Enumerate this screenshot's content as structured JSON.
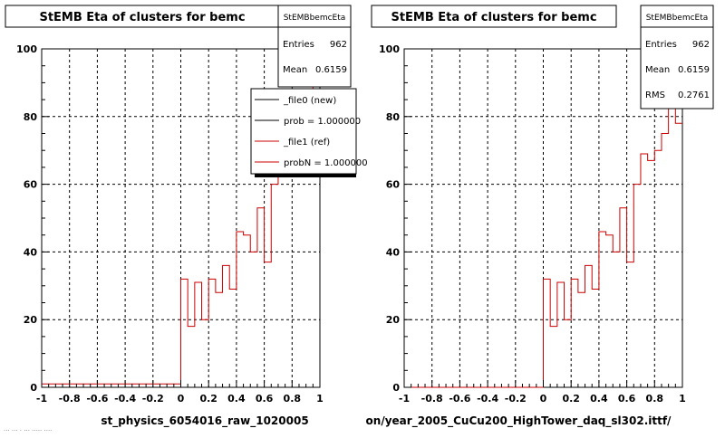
{
  "page": {
    "footer_text": "... ... . ... ..... ...."
  },
  "chart_data": [
    {
      "type": "histogram",
      "title": "StEMB Eta of clusters for bemc",
      "xlabel": "st_physics_6054016_raw_1020005",
      "ylabel": "",
      "xlim": [
        -1,
        1
      ],
      "ylim": [
        0,
        100
      ],
      "grid": true,
      "xticks": [
        "-1",
        "-0.8",
        "-0.6",
        "-0.4",
        "-0.2",
        "0",
        "0.2",
        "0.4",
        "0.6",
        "0.8",
        "1"
      ],
      "yticks": [
        "0",
        "20",
        "40",
        "60",
        "80",
        "100"
      ],
      "stats": {
        "name": "StEMBbemcEta",
        "entries_label": "Entries",
        "entries": "962",
        "mean_label": "Mean",
        "mean": "0.6159"
      },
      "legend": {
        "placement": "top-right",
        "entries": [
          {
            "label": "_file0 (new)",
            "color": "#000000"
          },
          {
            "label": "prob = 1.000000",
            "color": "#000000"
          },
          {
            "label": "_file1 (ref)",
            "color": "#cc0000"
          },
          {
            "label": "probN = 1.000000",
            "color": "#cc0000"
          }
        ]
      },
      "series": [
        {
          "color": "#cc0000",
          "bin_edges_x": [
            -1,
            -0.95,
            -0.9,
            -0.85,
            -0.8,
            -0.75,
            -0.7,
            -0.65,
            -0.6,
            -0.55,
            -0.5,
            -0.45,
            -0.4,
            -0.35,
            -0.3,
            -0.25,
            -0.2,
            -0.15,
            -0.1,
            -0.05,
            0,
            0.05,
            0.1,
            0.15,
            0.2,
            0.25,
            0.3,
            0.35,
            0.4,
            0.45,
            0.5,
            0.55,
            0.6,
            0.65,
            0.7,
            0.75,
            0.8,
            0.85,
            0.9,
            0.95,
            1
          ],
          "values": [
            1,
            1,
            1,
            1,
            1,
            1,
            1,
            1,
            1,
            1,
            1,
            1,
            1,
            1,
            1,
            1,
            1,
            1,
            1,
            1,
            32,
            18,
            31,
            20,
            32,
            28,
            36,
            29,
            46,
            45,
            40,
            53,
            37,
            60,
            69,
            67,
            70,
            75,
            88,
            96
          ]
        }
      ]
    },
    {
      "type": "histogram",
      "title": "StEMB Eta of clusters for bemc",
      "xlabel": "on/year_2005_CuCu200_HighTower_daq_sl302.ittf/",
      "ylabel": "",
      "xlim": [
        -1,
        1
      ],
      "ylim": [
        0,
        100
      ],
      "grid": true,
      "xticks": [
        "-1",
        "-0.8",
        "-0.6",
        "-0.4",
        "-0.2",
        "0",
        "0.2",
        "0.4",
        "0.6",
        "0.8",
        "1"
      ],
      "yticks": [
        "0",
        "20",
        "40",
        "60",
        "80",
        "100"
      ],
      "stats": {
        "name": "StEMBbemcEta",
        "entries_label": "Entries",
        "entries": "962",
        "mean_label": "Mean",
        "mean": "0.6159",
        "rms_label": "RMS",
        "rms": "0.2761"
      },
      "series": [
        {
          "color": "#cc0000",
          "bin_edges_x": [
            -1,
            -0.95,
            -0.9,
            -0.85,
            -0.8,
            -0.75,
            -0.7,
            -0.65,
            -0.6,
            -0.55,
            -0.5,
            -0.45,
            -0.4,
            -0.35,
            -0.3,
            -0.25,
            -0.2,
            -0.15,
            -0.1,
            -0.05,
            0,
            0.05,
            0.1,
            0.15,
            0.2,
            0.25,
            0.3,
            0.35,
            0.4,
            0.45,
            0.5,
            0.55,
            0.6,
            0.65,
            0.7,
            0.75,
            0.8,
            0.85,
            0.9,
            0.95,
            1
          ],
          "values": [
            0,
            0,
            0,
            0,
            0,
            0,
            0,
            0,
            0,
            0,
            0,
            0,
            0,
            0,
            0,
            0,
            0,
            0,
            0,
            0,
            32,
            18,
            31,
            20,
            32,
            28,
            36,
            29,
            46,
            45,
            40,
            53,
            37,
            60,
            69,
            67,
            70,
            75,
            84,
            78
          ]
        }
      ]
    }
  ]
}
